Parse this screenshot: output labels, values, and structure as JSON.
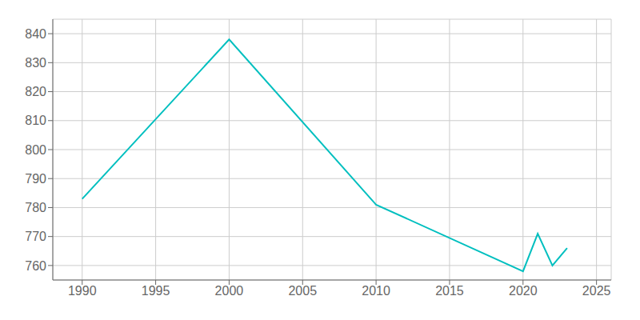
{
  "chart_data": {
    "type": "line",
    "x": [
      1990,
      2000,
      2010,
      2020,
      2021,
      2022,
      2023
    ],
    "values": [
      783,
      838,
      781,
      758,
      771,
      760,
      766
    ],
    "color": "#00BFBF",
    "xlim": [
      1988,
      2026
    ],
    "ylim": [
      755,
      845
    ],
    "xticks": [
      1990,
      1995,
      2000,
      2005,
      2010,
      2015,
      2020,
      2025
    ],
    "yticks": [
      760,
      770,
      780,
      790,
      800,
      810,
      820,
      830,
      840
    ],
    "grid": true
  }
}
